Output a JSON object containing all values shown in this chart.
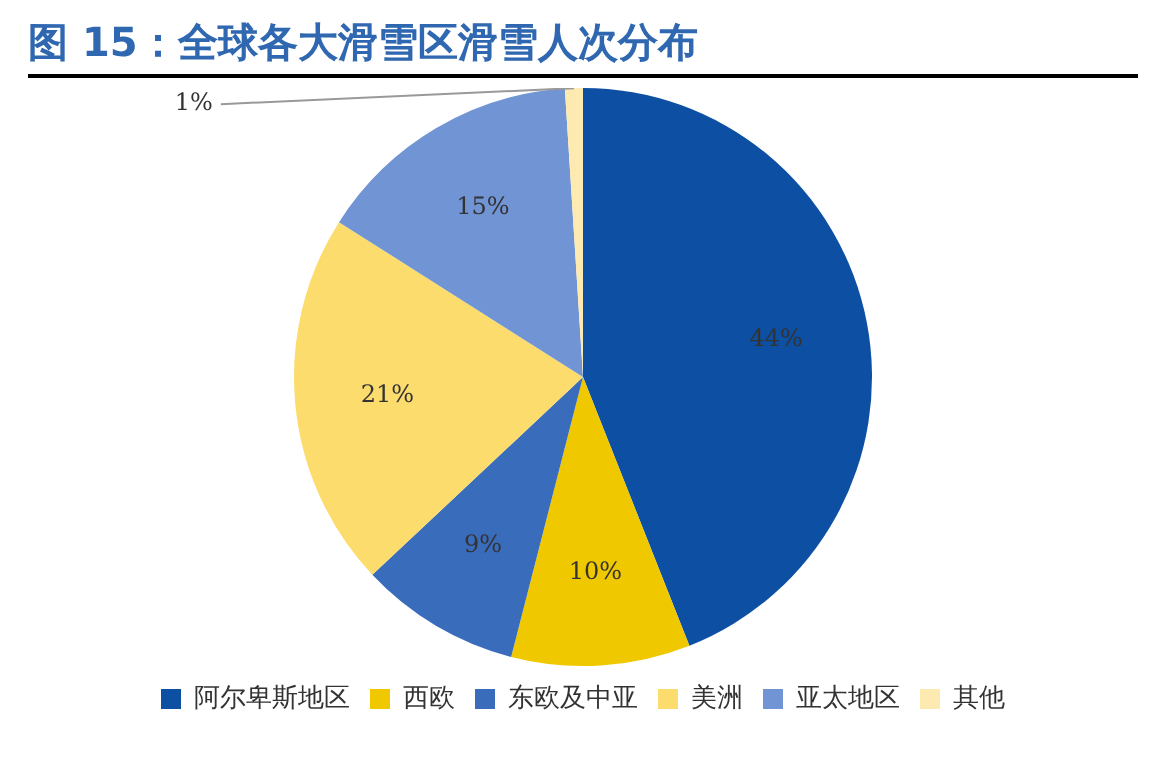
{
  "chart_data": {
    "type": "pie",
    "title": "图 15：全球各大滑雪区滑雪人次分布",
    "categories": [
      "阿尔卑斯地区",
      "西欧",
      "东欧及中亚",
      "美洲",
      "亚太地区",
      "其他"
    ],
    "values": [
      44,
      10,
      9,
      21,
      15,
      1
    ],
    "colors": [
      "#0d4fa3",
      "#f0c800",
      "#3a6cbc",
      "#fcdc6c",
      "#7094d4",
      "#fdeab0"
    ],
    "value_labels": [
      "44%",
      "10%",
      "9%",
      "21%",
      "15%",
      "1%"
    ],
    "legend": "bottom"
  }
}
